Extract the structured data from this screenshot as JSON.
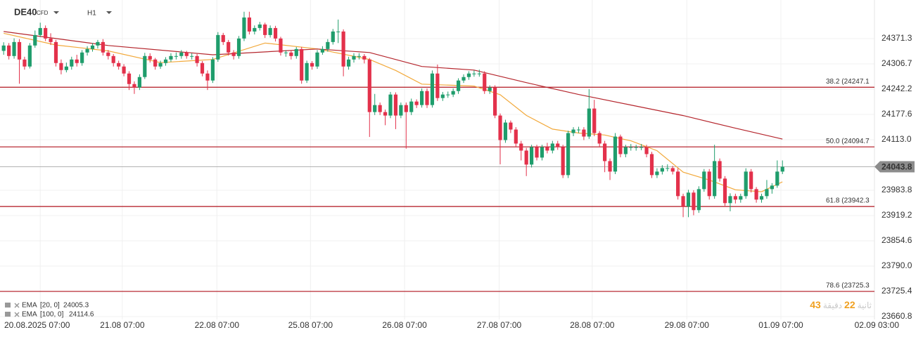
{
  "chart_data": {
    "type": "candlestick",
    "symbol": "DE40",
    "instrument_type": "CFD",
    "timeframe": "H1",
    "xlim": [
      -0.7,
      166.6
    ],
    "ylim": [
      23653.6,
      24470.0
    ],
    "yticks": [
      24371.3,
      24306.7,
      24242.2,
      24177.6,
      {
        "value": 24113,
        "label": "24113.0"
      },
      23983.8,
      23919.2,
      23854.6,
      {
        "value": 23790,
        "label": "23790.0"
      },
      23725.4,
      23660.8
    ],
    "xticks": [
      {
        "value": 7,
        "label": "20.08.2025  07:00"
      },
      {
        "value": 22.7,
        "label": "21.08  07:00"
      },
      {
        "value": 40.8,
        "label": "22.08  07:00"
      },
      {
        "value": 58.7,
        "label": "25.08  07:00"
      },
      {
        "value": 76.7,
        "label": "26.08  07:00"
      },
      {
        "value": 94.8,
        "label": "27.08  07:00"
      },
      {
        "value": 112.6,
        "label": "28.08  07:00"
      },
      {
        "value": 130.7,
        "label": "29.08  07:00"
      },
      {
        "value": 148.7,
        "label": "01.09  07:00"
      },
      {
        "value": 166.6,
        "label": "02.09  03:00"
      }
    ],
    "grid": true,
    "series": [
      {
        "name": "DE40",
        "up_color": "#1f9d6c",
        "down_color": "#e3314b",
        "open": [
          24340.0,
          24353.7,
          24326.8,
          24362.6,
          24317.9,
          24300.0,
          24353.7,
          24380.5,
          24398.4,
          24371.6,
          24362.6,
          24308.9,
          24291.0,
          24300.0,
          24317.9,
          24308.9,
          24335.8,
          24344.7,
          24353.7,
          24362.6,
          24335.8,
          24326.8,
          24308.9,
          24300.0,
          24282.1,
          24255.2,
          24246.3,
          24273.1,
          24326.8,
          24317.9,
          24300.0,
          24308.9,
          24317.9,
          24326.8,
          24326.8,
          24335.8,
          24326.8,
          24326.8,
          24308.9,
          24282.1,
          24264.2,
          24317.9,
          24380.5,
          24362.6,
          24335.8,
          24326.8,
          24371.6,
          24425.3,
          24389.5,
          24398.4,
          24407.4,
          24380.5,
          24398.4,
          24371.6,
          24335.8,
          24335.8,
          24326.8,
          24344.7,
          24264.2,
          24308.9,
          24300.0,
          24335.8,
          24344.7,
          24362.6,
          24389.5,
          24389.5,
          24300.0,
          24317.9,
          24326.8,
          24326.8,
          24317.9,
          24183.6,
          24201.5,
          24183.6,
          24174.7,
          24228.4,
          24174.7,
          24201.5,
          24183.6,
          24210.5,
          24201.5,
          24237.3,
          24201.5,
          24282.1,
          24219.4,
          24228.4,
          24228.4,
          24237.3,
          24264.2,
          24273.1,
          24282.1,
          24282.1,
          24282.1,
          24237.3,
          24246.3,
          24174.7,
          24112.0,
          24156.8,
          24138.9,
          24103.1,
          24085.2,
          24049.4,
          24094.1,
          24067.3,
          24094.1,
          24085.2,
          24103.1,
          24094.1,
          24022.5,
          24129.9,
          24138.9,
          24138.9,
          24121.0,
          24192.6,
          24129.9,
          24103.1,
          24058.3,
          24031.5,
          24121.0,
          24076.2,
          24094.1,
          24094.1,
          24094.1,
          24094.1,
          24076.2,
          24022.5,
          24031.5,
          24040.4,
          24040.4,
          24031.5,
          23968.8,
          23942.0,
          23977.8,
          23933.0,
          23986.7,
          24031.5,
          23968.8,
          24058.3,
          24013.6,
          23950.9,
          23968.8,
          23959.9,
          23968.8,
          24031.5,
          23986.7,
          23959.9,
          23968.8,
          23986.7,
          23995.7,
          24031.5
        ],
        "high": [
          24362,
          24360,
          24372,
          24370,
          24325,
          24360,
          24392,
          24412,
          24405,
          24385,
          24368,
          24318,
          24310,
          24325,
          24330,
          24342,
          24352,
          24360,
          24368,
          24370,
          24342,
          24332,
          24315,
          24306,
          24288,
          24262,
          24280,
          24335,
          24334,
          24322,
          24315,
          24324,
          24334,
          24336,
          24342,
          24340,
          24334,
          24332,
          24314,
          24290,
          24324,
          24388,
          24386,
          24368,
          24342,
          24378,
          24440,
          24440,
          24405,
          24414,
          24412,
          24405,
          24404,
          24376,
          24342,
          24342,
          24350,
          24350,
          24315,
          24314,
          24342,
          24352,
          24370,
          24396,
          24420,
          24395,
          24325,
          24334,
          24334,
          24332,
          24322,
          24230,
          24208,
          24190,
          24235,
          24234,
          24208,
          24208,
          24218,
          24216,
          24244,
          24244,
          24290,
          24305,
          24235,
          24236,
          24244,
          24270,
          24280,
          24288,
          24290,
          24292,
          24288,
          24252,
          24252,
          24180,
          24164,
          24162,
          24145,
          24110,
          24092,
          24100,
          24100,
          24100,
          24105,
          24110,
          24110,
          24100,
          24136,
          24145,
          24146,
          24145,
          24242,
          24215,
          24135,
          24110,
          24065,
          24130,
          24126,
          24100,
          24102,
          24100,
          24102,
          24100,
          24082,
          24040,
          24048,
          24050,
          24046,
          24040,
          23975,
          23985,
          23984,
          23994,
          24038,
          24038,
          24100,
          24065,
          24020,
          23976,
          23975,
          23975,
          24040,
          24038,
          23992,
          23975,
          24010,
          24002,
          24060,
          24060
        ],
        "low": [
          24330,
          24318,
          24320,
          24256,
          24292,
          24295,
          24348,
          24375,
          24365,
          24355,
          24300,
          24280,
          24285,
          24292,
          24300,
          24302,
          24328,
          24338,
          24346,
          24328,
          24318,
          24300,
          24292,
          24275,
          24240,
          24230,
          24240,
          24268,
          24310,
          24292,
          24294,
          24302,
          24312,
          24318,
          24320,
          24320,
          24318,
          24300,
          24275,
          24240,
          24258,
          24312,
          24355,
          24328,
          24318,
          24320,
          24365,
          24382,
          24382,
          24392,
          24373,
          24374,
          24364,
          24328,
          24325,
          24318,
          24320,
          24256,
          24258,
          24292,
          24294,
          24330,
          24338,
          24356,
          24360,
          24275,
          24292,
          24310,
          24318,
          24308,
          24120,
          24176,
          24176,
          24150,
          24168,
          24140,
          24168,
          24090,
          24176,
          24194,
          24195,
          24194,
          24195,
          24212,
          24212,
          24220,
          24222,
          24230,
          24258,
          24266,
          24274,
          24274,
          24230,
          24230,
          24168,
          24050,
          24105,
          24130,
          24095,
          24060,
          24020,
          24042,
          24060,
          24060,
          24078,
          24078,
          24087,
          24015,
          24015,
          24122,
          24130,
          24112,
          24115,
          24122,
          24095,
          24030,
          24010,
          24025,
          24068,
          24068,
          24085,
          24085,
          24086,
          24068,
          24015,
          24015,
          24024,
          24032,
          24024,
          23960,
          23915,
          23915,
          23920,
          23926,
          23980,
          23960,
          23962,
          24006,
          23944,
          23930,
          23950,
          23952,
          23962,
          23978,
          23952,
          23952,
          23962,
          23975,
          23990,
          24025
        ],
        "close": [
          24353.7,
          24326.8,
          24362.6,
          24317.9,
          24300.0,
          24353.7,
          24380.5,
          24398.4,
          24371.6,
          24362.6,
          24308.9,
          24291.0,
          24300.0,
          24317.9,
          24308.9,
          24335.8,
          24344.7,
          24353.7,
          24362.6,
          24335.8,
          24326.8,
          24308.9,
          24300.0,
          24282.1,
          24255.2,
          24246.3,
          24273.1,
          24326.8,
          24317.9,
          24300.0,
          24308.9,
          24317.9,
          24326.8,
          24326.8,
          24335.8,
          24326.8,
          24326.8,
          24308.9,
          24282.1,
          24264.2,
          24317.9,
          24380.5,
          24362.6,
          24335.8,
          24326.8,
          24371.6,
          24425.3,
          24389.5,
          24398.4,
          24407.4,
          24380.5,
          24398.4,
          24371.6,
          24335.8,
          24335.8,
          24326.8,
          24344.7,
          24264.2,
          24308.9,
          24300.0,
          24335.8,
          24344.7,
          24362.6,
          24389.5,
          24389.5,
          24300.0,
          24317.9,
          24326.8,
          24326.8,
          24317.9,
          24183.6,
          24201.5,
          24183.6,
          24174.7,
          24228.4,
          24174.7,
          24201.5,
          24183.6,
          24210.5,
          24201.5,
          24237.3,
          24201.5,
          24282.1,
          24219.4,
          24228.4,
          24228.4,
          24237.3,
          24264.2,
          24273.1,
          24282.1,
          24282.1,
          24282.1,
          24237.3,
          24246.3,
          24174.7,
          24112.0,
          24156.8,
          24138.9,
          24103.1,
          24085.2,
          24049.4,
          24094.1,
          24067.3,
          24094.1,
          24085.2,
          24103.1,
          24094.1,
          24022.5,
          24129.9,
          24138.9,
          24138.9,
          24121.0,
          24192.6,
          24129.9,
          24103.1,
          24058.3,
          24031.5,
          24121.0,
          24076.2,
          24094.1,
          24094.1,
          24094.1,
          24094.1,
          24076.2,
          24022.5,
          24031.5,
          24040.4,
          24040.4,
          24031.5,
          23968.8,
          23942.0,
          23977.8,
          23933.0,
          23986.7,
          24031.5,
          23968.8,
          24058.3,
          24013.6,
          23950.9,
          23968.8,
          23959.9,
          23968.8,
          24031.5,
          23986.7,
          23959.9,
          23968.8,
          23986.7,
          23995.7,
          24031.5,
          24043.8
        ]
      }
    ],
    "indicators": [
      {
        "name": "EMA",
        "params": "[20, 0]",
        "last_value": 24005.3,
        "color": "#f2a93b",
        "x": [
          0,
          10,
          20,
          30,
          40,
          50,
          60,
          70,
          75,
          80,
          90,
          95,
          100,
          105,
          110,
          115,
          120,
          125,
          130,
          135,
          140,
          145,
          149
        ],
        "values": [
          24385,
          24355,
          24340,
          24310,
          24318,
          24360,
          24345,
          24318,
          24290,
          24255,
          24250,
          24228,
          24175,
          24140,
          24130,
          24125,
          24110,
          24085,
          24030,
          24010,
          23985,
          23980,
          24005.3
        ]
      },
      {
        "name": "EMA",
        "params": "[100, 0]",
        "last_value": 24114.6,
        "color": "#b5262d",
        "x": [
          0,
          20,
          40,
          60,
          70,
          80,
          90,
          100,
          110,
          120,
          130,
          140,
          149
        ],
        "values": [
          24389.5,
          24353.7,
          24330,
          24344.7,
          24335.8,
          24300,
          24291,
          24258.8,
          24228.4,
          24201.5,
          24174.7,
          24142.4,
          24114.6
        ]
      }
    ],
    "fib_levels": [
      {
        "value": 24247.1,
        "label": "38.2 (24247.1"
      },
      {
        "value": 24094.7,
        "label": "50.0 (24094.7"
      },
      {
        "value": 23942.3,
        "label": "61.8 (23942.3"
      },
      {
        "value": 23725.3,
        "label": "78.6 (23725.3"
      }
    ],
    "fib_color": "#b0141e",
    "last_price": 24043.8,
    "countdown": {
      "seconds": 43,
      "seconds_unit": "ثانية",
      "minutes": 22,
      "minutes_unit": "دقيقة"
    }
  }
}
